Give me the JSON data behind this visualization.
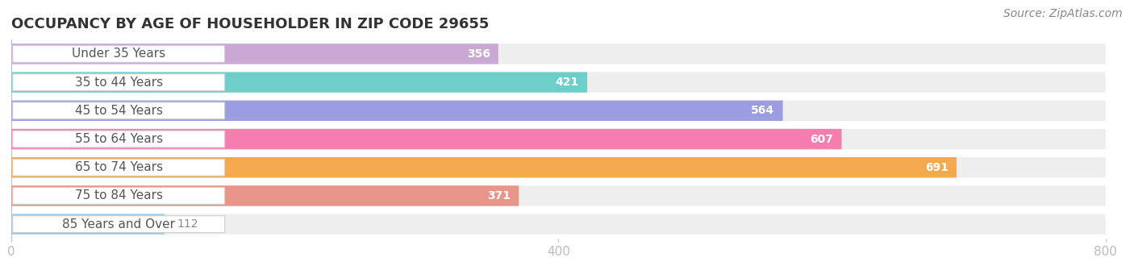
{
  "title": "OCCUPANCY BY AGE OF HOUSEHOLDER IN ZIP CODE 29655",
  "source": "Source: ZipAtlas.com",
  "categories": [
    "Under 35 Years",
    "35 to 44 Years",
    "45 to 54 Years",
    "55 to 64 Years",
    "65 to 74 Years",
    "75 to 84 Years",
    "85 Years and Over"
  ],
  "values": [
    356,
    421,
    564,
    607,
    691,
    371,
    112
  ],
  "bar_colors": [
    "#c9a8d4",
    "#6ececa",
    "#9b9de0",
    "#f57db0",
    "#f5a94e",
    "#e8968a",
    "#9dc8e8"
  ],
  "xlim": [
    0,
    800
  ],
  "xticks": [
    0,
    400,
    800
  ],
  "title_fontsize": 13,
  "label_fontsize": 11,
  "value_fontsize": 10,
  "source_fontsize": 10,
  "bg_color": "#ffffff",
  "bar_bg_color": "#eeeeee",
  "label_bg_color": "#ffffff",
  "label_text_color": "#555555",
  "value_color_inside": "#ffffff",
  "value_color_outside": "#888888",
  "title_color": "#333333",
  "source_color": "#888888",
  "tick_color": "#bbbbbb",
  "grid_color": "#dddddd"
}
